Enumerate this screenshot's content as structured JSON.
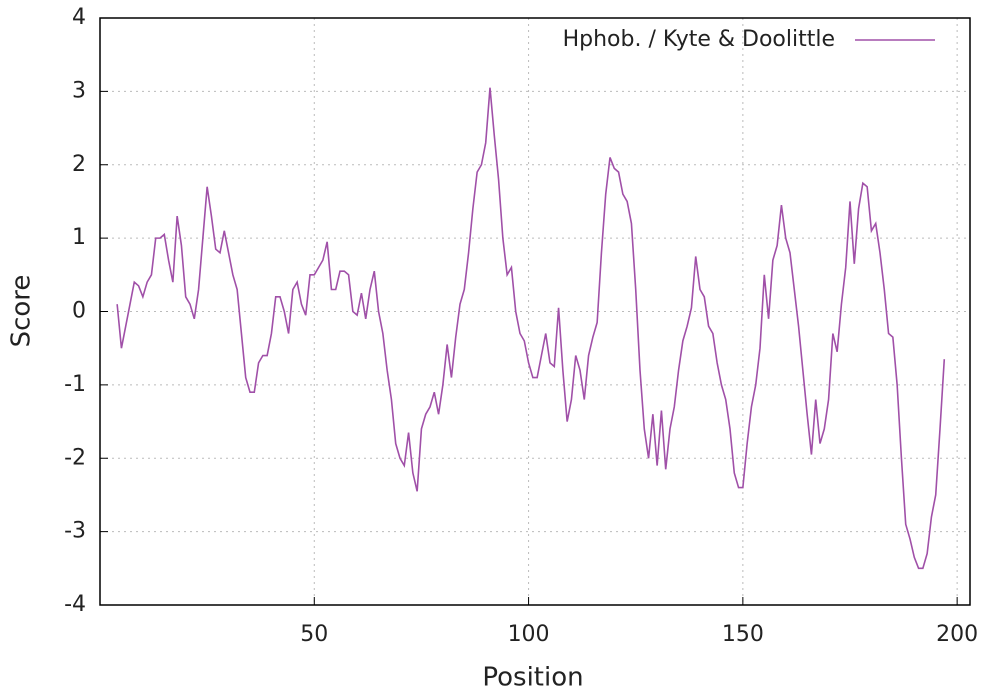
{
  "chart_data": {
    "type": "line",
    "xlabel": "Position",
    "ylabel": "Score",
    "xlim": [
      0,
      203
    ],
    "ylim": [
      -4,
      4
    ],
    "xticks": [
      50,
      100,
      150,
      200
    ],
    "yticks": [
      -4,
      -3,
      -2,
      -1,
      0,
      1,
      2,
      3,
      4
    ],
    "grid": true,
    "legend": "upper right",
    "x": [
      4,
      5,
      6,
      7,
      8,
      9,
      10,
      11,
      12,
      13,
      14,
      15,
      16,
      17,
      18,
      19,
      20,
      21,
      22,
      23,
      24,
      25,
      26,
      27,
      28,
      29,
      30,
      31,
      32,
      33,
      34,
      35,
      36,
      37,
      38,
      39,
      40,
      41,
      42,
      43,
      44,
      45,
      46,
      47,
      48,
      49,
      50,
      51,
      52,
      53,
      54,
      55,
      56,
      57,
      58,
      59,
      60,
      61,
      62,
      63,
      64,
      65,
      66,
      67,
      68,
      69,
      70,
      71,
      72,
      73,
      74,
      75,
      76,
      77,
      78,
      79,
      80,
      81,
      82,
      83,
      84,
      85,
      86,
      87,
      88,
      89,
      90,
      91,
      92,
      93,
      94,
      95,
      96,
      97,
      98,
      99,
      100,
      101,
      102,
      103,
      104,
      105,
      106,
      107,
      108,
      109,
      110,
      111,
      112,
      113,
      114,
      115,
      116,
      117,
      118,
      119,
      120,
      121,
      122,
      123,
      124,
      125,
      126,
      127,
      128,
      129,
      130,
      131,
      132,
      133,
      134,
      135,
      136,
      137,
      138,
      139,
      140,
      141,
      142,
      143,
      144,
      145,
      146,
      147,
      148,
      149,
      150,
      151,
      152,
      153,
      154,
      155,
      156,
      157,
      158,
      159,
      160,
      161,
      162,
      163,
      164,
      165,
      166,
      167,
      168,
      169,
      170,
      171,
      172,
      173,
      174,
      175,
      176,
      177,
      178,
      179,
      180,
      181,
      182,
      183,
      184,
      185,
      186,
      187,
      188,
      189,
      190,
      191,
      192,
      193,
      194,
      195,
      196,
      197
    ],
    "series": [
      {
        "name": "Hphob. / Kyte & Doolittle",
        "color": "#a050a8",
        "values": [
          0.1,
          -0.5,
          -0.2,
          0.1,
          0.4,
          0.35,
          0.2,
          0.4,
          0.5,
          1.0,
          1.0,
          1.05,
          0.7,
          0.4,
          1.3,
          0.9,
          0.2,
          0.1,
          -0.1,
          0.3,
          1.0,
          1.7,
          1.3,
          0.85,
          0.8,
          1.1,
          0.8,
          0.5,
          0.3,
          -0.3,
          -0.9,
          -1.1,
          -1.1,
          -0.7,
          -0.6,
          -0.6,
          -0.3,
          0.2,
          0.2,
          0.0,
          -0.3,
          0.3,
          0.4,
          0.1,
          -0.05,
          0.5,
          0.5,
          0.6,
          0.7,
          0.95,
          0.3,
          0.3,
          0.55,
          0.55,
          0.5,
          0.0,
          -0.05,
          0.25,
          -0.1,
          0.3,
          0.55,
          0.0,
          -0.3,
          -0.8,
          -1.2,
          -1.8,
          -2.0,
          -2.1,
          -1.65,
          -2.2,
          -2.45,
          -1.6,
          -1.4,
          -1.3,
          -1.1,
          -1.4,
          -1.0,
          -0.45,
          -0.9,
          -0.35,
          0.1,
          0.3,
          0.8,
          1.4,
          1.9,
          2.0,
          2.3,
          3.05,
          2.4,
          1.8,
          1.0,
          0.5,
          0.6,
          0.0,
          -0.3,
          -0.4,
          -0.7,
          -0.9,
          -0.9,
          -0.6,
          -0.3,
          -0.7,
          -0.75,
          0.05,
          -0.8,
          -1.5,
          -1.2,
          -0.6,
          -0.8,
          -1.2,
          -0.6,
          -0.35,
          -0.15,
          0.8,
          1.6,
          2.1,
          1.95,
          1.9,
          1.6,
          1.5,
          1.2,
          0.3,
          -0.8,
          -1.6,
          -2.0,
          -1.4,
          -2.1,
          -1.35,
          -2.15,
          -1.6,
          -1.3,
          -0.8,
          -0.4,
          -0.2,
          0.05,
          0.75,
          0.3,
          0.2,
          -0.2,
          -0.3,
          -0.7,
          -1.0,
          -1.2,
          -1.6,
          -2.2,
          -2.4,
          -2.4,
          -1.8,
          -1.3,
          -1.0,
          -0.5,
          0.5,
          -0.1,
          0.7,
          0.9,
          1.45,
          1.0,
          0.8,
          0.3,
          -0.2,
          -0.8,
          -1.4,
          -1.95,
          -1.2,
          -1.8,
          -1.6,
          -1.2,
          -0.3,
          -0.55,
          0.1,
          0.6,
          1.5,
          0.65,
          1.4,
          1.75,
          1.7,
          1.1,
          1.2,
          0.8,
          0.3,
          -0.3,
          -0.35,
          -1.0,
          -2.0,
          -2.9,
          -3.1,
          -3.35,
          -3.5,
          -3.5,
          -3.3,
          -2.8,
          -2.5,
          -1.6,
          -0.65
        ]
      }
    ]
  }
}
